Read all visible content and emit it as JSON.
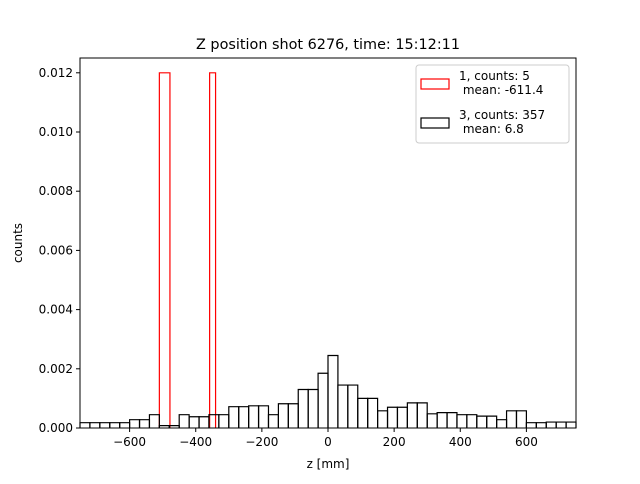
{
  "chart_data": {
    "type": "histogram",
    "title": "Z position shot 6276, time: 15:12:11",
    "xlabel": "z [mm]",
    "ylabel": "counts",
    "xlim": [
      -750,
      750
    ],
    "ylim": [
      0,
      0.0125
    ],
    "x_ticks": [
      -600,
      -400,
      -200,
      0,
      200,
      400,
      600
    ],
    "x_tick_labels": [
      "−600",
      "−400",
      "−200",
      "0",
      "200",
      "400",
      "600"
    ],
    "y_ticks": [
      0,
      0.002,
      0.004,
      0.006,
      0.008,
      0.01,
      0.012
    ],
    "y_tick_labels": [
      "0.000",
      "0.002",
      "0.004",
      "0.006",
      "0.008",
      "0.010",
      "0.012"
    ],
    "grid": false,
    "legend_position": "top-right",
    "series": [
      {
        "name": "1, counts: 5\n mean: -611.4",
        "name_lines": [
          "1, counts: 5",
          " mean: -611.4"
        ],
        "color": "#ff0000",
        "edges": [
          -510,
          -478,
          -358,
          -340
        ],
        "values": [
          0.012,
          0.0,
          0.012
        ]
      },
      {
        "name": "3, counts: 357\n mean: 6.8",
        "name_lines": [
          "3, counts: 357",
          " mean: 6.8"
        ],
        "color": "#000000",
        "edges": [
          -750,
          -720,
          -690,
          -660,
          -630,
          -600,
          -570,
          -540,
          -510,
          -480,
          -450,
          -420,
          -390,
          -360,
          -330,
          -300,
          -270,
          -240,
          -210,
          -180,
          -150,
          -120,
          -90,
          -60,
          -30,
          0,
          30,
          60,
          90,
          120,
          150,
          180,
          210,
          240,
          270,
          300,
          330,
          360,
          390,
          420,
          450,
          480,
          510,
          540,
          570,
          600,
          630,
          660,
          690,
          720,
          750
        ],
        "values_note": "",
        "values": [
          0.00018,
          0.00018,
          0.00018,
          0.00018,
          0.00018,
          0.00028,
          0.00028,
          0.00045,
          8e-05,
          8e-05,
          0.00045,
          0.00038,
          0.00038,
          0.00045,
          0.00045,
          0.00072,
          0.00072,
          0.00075,
          0.00075,
          0.00045,
          0.00082,
          0.00082,
          0.0013,
          0.0013,
          0.00185,
          0.00245,
          0.00145,
          0.00145,
          0.001,
          0.001,
          0.00058,
          0.0007,
          0.0007,
          0.00085,
          0.00085,
          0.00048,
          0.00052,
          0.00052,
          0.00045,
          0.00045,
          0.0004,
          0.0004,
          0.00028,
          0.00058,
          0.00058,
          0.00018,
          0.00018,
          0.0002,
          0.0002,
          0.0002
        ]
      }
    ]
  }
}
